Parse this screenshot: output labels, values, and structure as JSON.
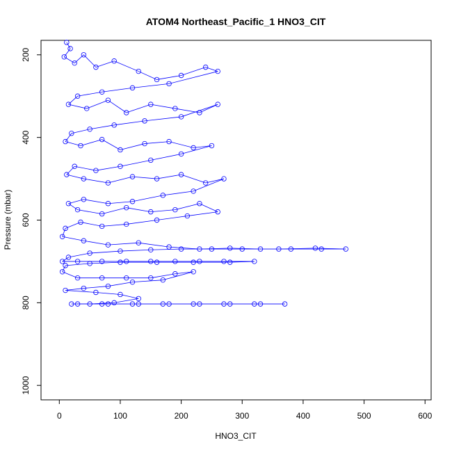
{
  "chart_data": {
    "type": "scatter",
    "title": "ATOM4 Northeast_Pacific_1 HNO3_CIT",
    "xlabel": "HNO3_CIT",
    "ylabel": "Pressure (mbar)",
    "xlim": [
      -30,
      610
    ],
    "ylim": [
      1035,
      165
    ],
    "y_reversed": true,
    "x_ticks": [
      0,
      100,
      200,
      300,
      400,
      500,
      600
    ],
    "y_ticks": [
      200,
      400,
      600,
      800,
      1000
    ],
    "grid": false,
    "legend": "none",
    "series_color": "#0000ff",
    "marker": "open-circle",
    "connected": true,
    "series": [
      {
        "points": [
          [
            12,
            170
          ],
          [
            18,
            185
          ],
          [
            8,
            205
          ],
          [
            25,
            220
          ],
          [
            40,
            200
          ],
          [
            60,
            230
          ],
          [
            90,
            215
          ],
          [
            130,
            240
          ],
          [
            160,
            260
          ],
          [
            200,
            250
          ],
          [
            240,
            230
          ],
          [
            260,
            240
          ],
          [
            180,
            270
          ],
          [
            120,
            280
          ],
          [
            70,
            290
          ],
          [
            30,
            300
          ],
          [
            15,
            320
          ],
          [
            45,
            330
          ],
          [
            80,
            310
          ],
          [
            110,
            340
          ],
          [
            150,
            320
          ],
          [
            190,
            330
          ],
          [
            230,
            340
          ],
          [
            260,
            320
          ],
          [
            200,
            350
          ],
          [
            140,
            360
          ],
          [
            90,
            370
          ],
          [
            50,
            380
          ],
          [
            20,
            390
          ],
          [
            10,
            410
          ],
          [
            35,
            420
          ],
          [
            70,
            405
          ],
          [
            100,
            430
          ],
          [
            140,
            415
          ],
          [
            180,
            410
          ],
          [
            220,
            425
          ],
          [
            250,
            420
          ],
          [
            200,
            440
          ],
          [
            150,
            455
          ],
          [
            100,
            470
          ],
          [
            60,
            480
          ],
          [
            25,
            470
          ],
          [
            12,
            490
          ],
          [
            40,
            500
          ],
          [
            80,
            510
          ],
          [
            120,
            495
          ],
          [
            160,
            500
          ],
          [
            200,
            490
          ],
          [
            240,
            510
          ],
          [
            270,
            500
          ],
          [
            220,
            530
          ],
          [
            170,
            540
          ],
          [
            120,
            555
          ],
          [
            80,
            560
          ],
          [
            40,
            550
          ],
          [
            15,
            560
          ],
          [
            30,
            575
          ],
          [
            70,
            585
          ],
          [
            110,
            570
          ],
          [
            150,
            580
          ],
          [
            190,
            575
          ],
          [
            230,
            560
          ],
          [
            260,
            580
          ],
          [
            210,
            590
          ],
          [
            160,
            600
          ],
          [
            110,
            610
          ],
          [
            70,
            615
          ],
          [
            35,
            605
          ],
          [
            10,
            620
          ],
          [
            5,
            640
          ],
          [
            40,
            650
          ],
          [
            80,
            660
          ],
          [
            130,
            655
          ],
          [
            180,
            665
          ],
          [
            230,
            670
          ],
          [
            280,
            668
          ],
          [
            330,
            670
          ],
          [
            380,
            670
          ],
          [
            430,
            670
          ],
          [
            470,
            670
          ],
          [
            420,
            668
          ],
          [
            360,
            670
          ],
          [
            300,
            670
          ],
          [
            250,
            670
          ],
          [
            200,
            670
          ],
          [
            150,
            672
          ],
          [
            100,
            675
          ],
          [
            50,
            680
          ],
          [
            15,
            690
          ],
          [
            5,
            700
          ],
          [
            30,
            700
          ],
          [
            70,
            700
          ],
          [
            110,
            700
          ],
          [
            150,
            700
          ],
          [
            190,
            700
          ],
          [
            230,
            700
          ],
          [
            270,
            700
          ],
          [
            320,
            700
          ],
          [
            280,
            702
          ],
          [
            220,
            702
          ],
          [
            160,
            702
          ],
          [
            100,
            702
          ],
          [
            50,
            705
          ],
          [
            10,
            710
          ],
          [
            5,
            725
          ],
          [
            30,
            740
          ],
          [
            70,
            740
          ],
          [
            110,
            740
          ],
          [
            150,
            740
          ],
          [
            190,
            730
          ],
          [
            220,
            725
          ],
          [
            170,
            745
          ],
          [
            120,
            750
          ],
          [
            80,
            760
          ],
          [
            40,
            765
          ],
          [
            10,
            770
          ],
          [
            60,
            775
          ],
          [
            100,
            780
          ],
          [
            130,
            790
          ],
          [
            90,
            800
          ],
          [
            50,
            803
          ],
          [
            20,
            803
          ],
          [
            70,
            803
          ],
          [
            120,
            803
          ],
          [
            170,
            803
          ],
          [
            220,
            803
          ],
          [
            270,
            803
          ],
          [
            320,
            803
          ],
          [
            370,
            803
          ],
          [
            330,
            803
          ],
          [
            280,
            803
          ],
          [
            230,
            803
          ],
          [
            180,
            803
          ],
          [
            130,
            803
          ],
          [
            80,
            803
          ],
          [
            30,
            803
          ]
        ]
      }
    ]
  }
}
